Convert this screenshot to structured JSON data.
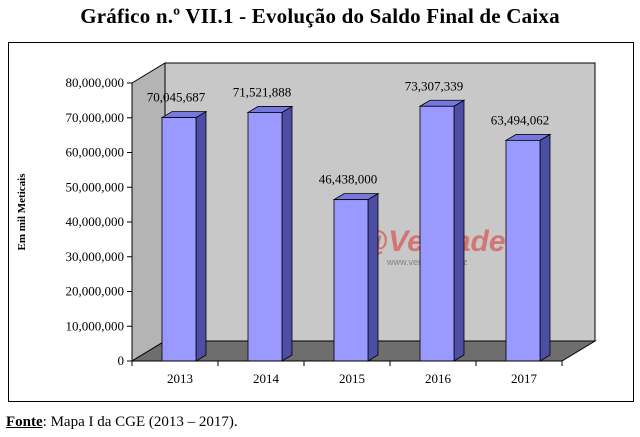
{
  "title": "Gráfico n.º VII.1 - Evolução do Saldo Final de Caixa",
  "source": {
    "label": "Fonte",
    "separator": ":",
    "text": "Mapa I da CGE (2013 – 2017)."
  },
  "watermark": {
    "brand": "@Verdade",
    "url": "www.verdade.co.mz"
  },
  "chart_data": {
    "type": "bar",
    "style": "3d-column",
    "categories": [
      "2013",
      "2014",
      "2015",
      "2016",
      "2017"
    ],
    "values": [
      70045687,
      71521888,
      46438000,
      73307339,
      63494062
    ],
    "value_labels": [
      "70,045,687",
      "71,521,888",
      "46,438,000",
      "73,307,339",
      "63,494,062"
    ],
    "ylabel": "Em mil Meticais",
    "ylim": [
      0,
      80000000
    ],
    "yticks": [
      0,
      10000000,
      20000000,
      30000000,
      40000000,
      50000000,
      60000000,
      70000000,
      80000000
    ],
    "ytick_labels": [
      "0",
      "10,000,000",
      "20,000,000",
      "30,000,000",
      "40,000,000",
      "50,000,000",
      "60,000,000",
      "70,000,000",
      "80,000,000"
    ],
    "grid": false,
    "legend": "none",
    "colors": {
      "bar_front": "#9999ff",
      "bar_side": "#4d4da6",
      "bar_top": "#7777dd",
      "wall": "#c8c8c8",
      "floor": "#6e6e6e"
    }
  }
}
